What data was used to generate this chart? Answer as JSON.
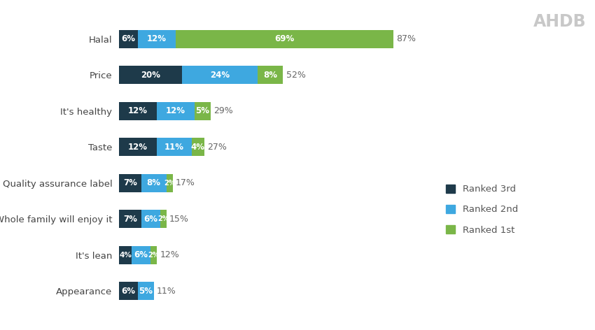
{
  "categories": [
    "Appearance",
    "It's lean",
    "Whole family will enjoy it",
    "Quality assurance label",
    "Taste",
    "It's healthy",
    "Price",
    "Halal"
  ],
  "ranked_3rd": [
    6,
    4,
    7,
    7,
    12,
    12,
    20,
    6
  ],
  "ranked_2nd": [
    5,
    6,
    6,
    8,
    11,
    12,
    24,
    12
  ],
  "ranked_1st": [
    0,
    2,
    2,
    2,
    4,
    5,
    8,
    69
  ],
  "totals": [
    11,
    12,
    15,
    17,
    27,
    29,
    52,
    87
  ],
  "color_3rd": "#1e3a4a",
  "color_2nd": "#3ea8e0",
  "color_1st": "#7ab648",
  "background_color": "#ffffff",
  "legend_labels": [
    "Ranked 3rd",
    "Ranked 2nd",
    "Ranked 1st"
  ],
  "figsize": [
    8.5,
    4.72
  ],
  "dpi": 100,
  "bar_height": 0.5
}
